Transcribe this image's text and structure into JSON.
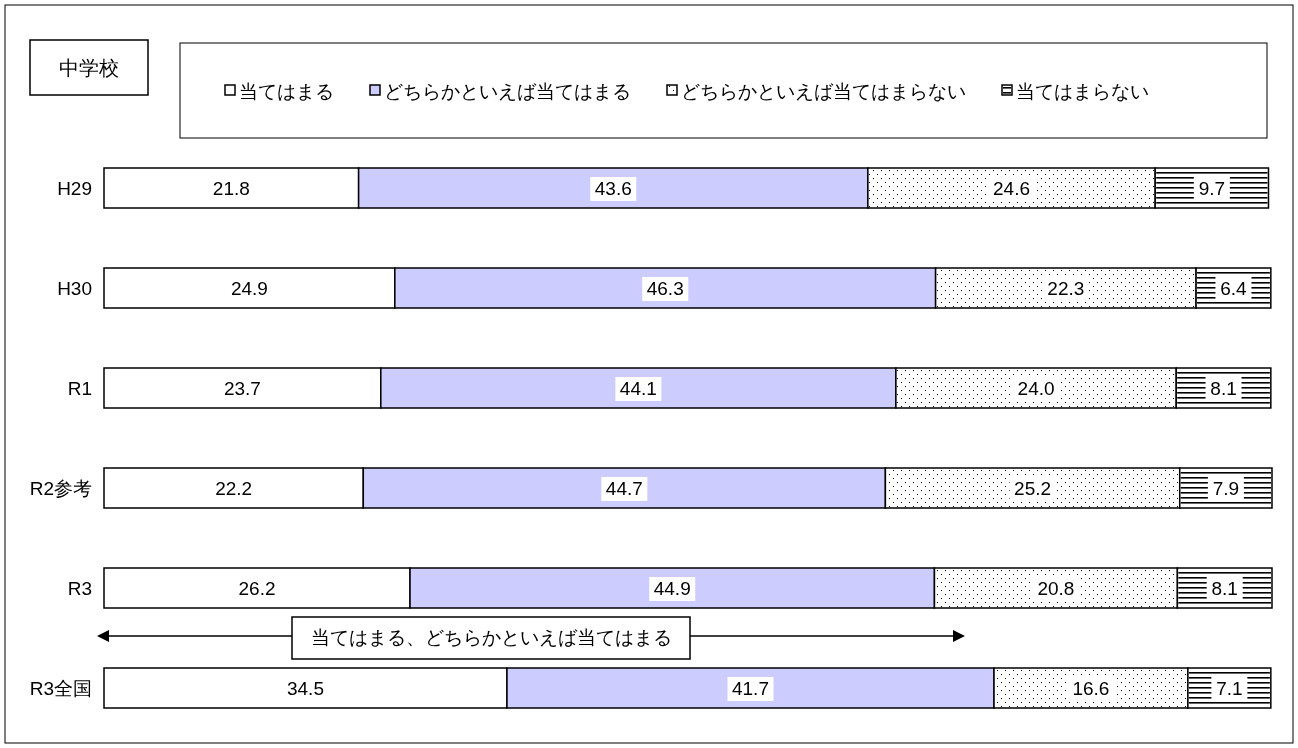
{
  "chart_data": {
    "type": "bar",
    "orientation": "horizontal",
    "stacked": true,
    "title": "中学校",
    "legend": "top",
    "categories": [
      "H29",
      "H30",
      "R1",
      "R2参考",
      "R3",
      "R3全国"
    ],
    "series": [
      {
        "name": "当てはまる",
        "color": "#ffffff",
        "values": [
          21.8,
          24.9,
          23.7,
          22.2,
          26.2,
          34.5
        ],
        "value_labels": [
          "21.8",
          "24.9",
          "23.7",
          "22.2",
          "26.2",
          "34.5"
        ]
      },
      {
        "name": "どちらかといえば当てはまる",
        "color": "#ccccff",
        "values": [
          43.6,
          46.3,
          44.1,
          44.7,
          44.9,
          41.7
        ],
        "value_labels": [
          "43.6",
          "46.3",
          "44.1",
          "44.7",
          "44.9",
          "41.7"
        ]
      },
      {
        "name": "どちらかといえば当てはまらない",
        "color": "#ffffff",
        "values": [
          24.6,
          22.3,
          24.0,
          25.2,
          20.8,
          16.6
        ],
        "value_labels": [
          "24.6",
          "22.3",
          "24.0",
          "25.2",
          "20.8",
          "16.6"
        ]
      },
      {
        "name": "当てはまらない",
        "color": "#ffffff",
        "values": [
          9.7,
          6.4,
          8.1,
          7.9,
          8.1,
          7.1
        ],
        "value_labels": [
          "9.7",
          "6.4",
          "8.1",
          "7.9",
          "8.1",
          "7.1"
        ]
      }
    ],
    "annotations": [
      "当てはまる、どちらかといえば当てはまる"
    ]
  }
}
